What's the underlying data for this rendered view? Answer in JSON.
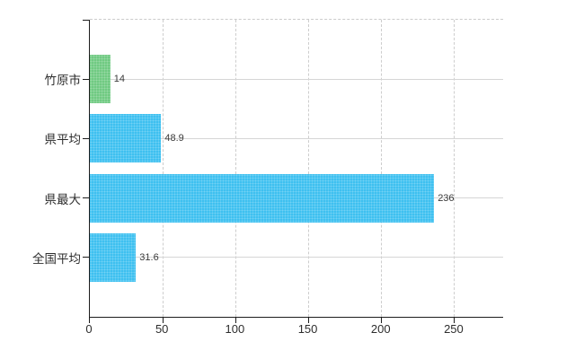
{
  "chart": {
    "background": "#ffffff",
    "axis_color": "#1c1c1c",
    "vgrid_color": "#cdcdcd",
    "hgrid_color": "#d6d6d6",
    "label_color": "#2d2d2d",
    "value_label_color": "#3a3a3a"
  },
  "chart_data": {
    "type": "bar",
    "orientation": "horizontal",
    "title": "",
    "xlabel": "",
    "ylabel": "",
    "categories": [
      "竹原市",
      "県平均",
      "県最大",
      "全国平均"
    ],
    "values": [
      14,
      48.9,
      236,
      31.6
    ],
    "value_labels": [
      "14",
      "48.9",
      "236",
      "31.6"
    ],
    "bar_colors": [
      "#70ca82",
      "#3ec0f0",
      "#3ec0f0",
      "#3ec0f0"
    ],
    "x_ticks": [
      0,
      50,
      100,
      150,
      200,
      250
    ],
    "x_tick_labels": [
      "0",
      "50",
      "100",
      "150",
      "200",
      "250"
    ],
    "xlim": [
      0,
      283.3
    ],
    "grid": {
      "vertical": "dashed",
      "horizontal": "solid",
      "top_border": "dashed"
    },
    "legend": "none"
  }
}
